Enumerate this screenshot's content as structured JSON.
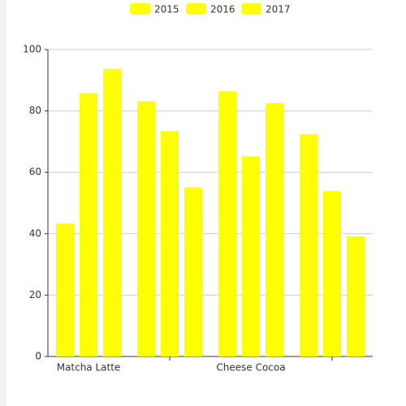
{
  "chart_data": {
    "type": "bar",
    "categories": [
      "Matcha Latte",
      null,
      "Cheese Cocoa",
      null
    ],
    "series": [
      {
        "name": "2015",
        "color": "#ffff00",
        "values": [
          43.3,
          83.1,
          86.4,
          72.4
        ]
      },
      {
        "name": "2016",
        "color": "#ffff00",
        "values": [
          85.8,
          73.4,
          65.2,
          53.9
        ]
      },
      {
        "name": "2017",
        "color": "#ffff00",
        "values": [
          93.7,
          55.1,
          82.5,
          39.1
        ]
      }
    ],
    "ylim": [
      0,
      100
    ],
    "yticks": [
      0,
      20,
      40,
      60,
      80,
      100
    ],
    "grid": true,
    "legend": "top"
  }
}
